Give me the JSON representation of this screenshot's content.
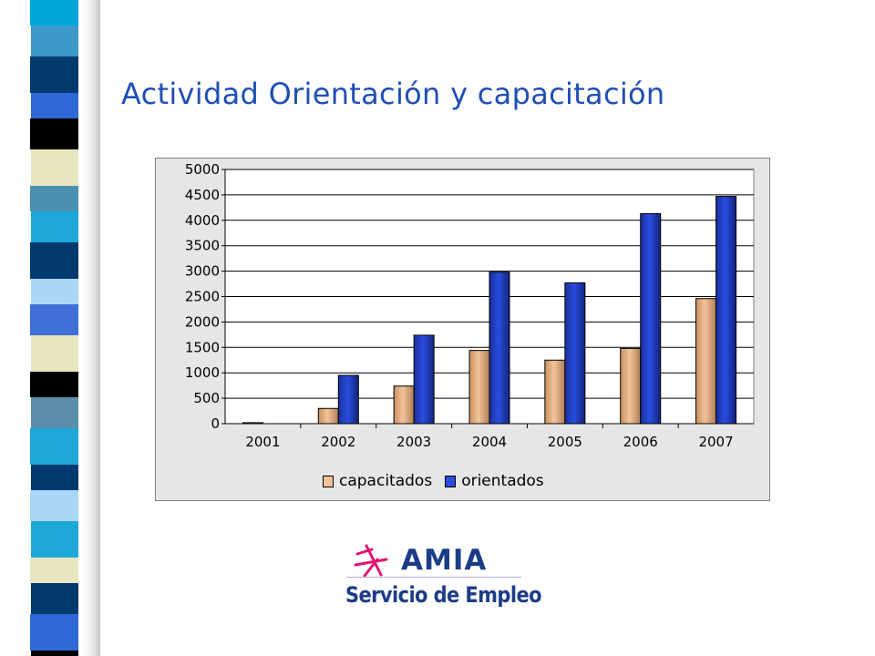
{
  "slide": {
    "title": "Actividad Orientación y capacitación"
  },
  "colors": {
    "title": "#1f4fb4",
    "capacitados": "#f2c49b",
    "orientados": "#2a4de0",
    "plot_background": "#ffffff",
    "chart_background": "#e6e6e6"
  },
  "chart_data": {
    "type": "bar",
    "title": "",
    "xlabel": "",
    "ylabel": "",
    "categories": [
      "2001",
      "2002",
      "2003",
      "2004",
      "2005",
      "2006",
      "2007"
    ],
    "series": [
      {
        "name": "capacitados",
        "values": [
          20,
          300,
          740,
          1440,
          1250,
          1480,
          2460
        ]
      },
      {
        "name": "orientados",
        "values": [
          0,
          950,
          1740,
          2980,
          2770,
          4130,
          4470
        ]
      }
    ],
    "ylim": [
      0,
      5000
    ],
    "yticks": [
      0,
      500,
      1000,
      1500,
      2000,
      2500,
      3000,
      3500,
      4000,
      4500,
      5000
    ],
    "grid": true,
    "legend": "bottom"
  },
  "logo": {
    "name": "AMIA",
    "tagline": "Servicio de Empleo"
  }
}
